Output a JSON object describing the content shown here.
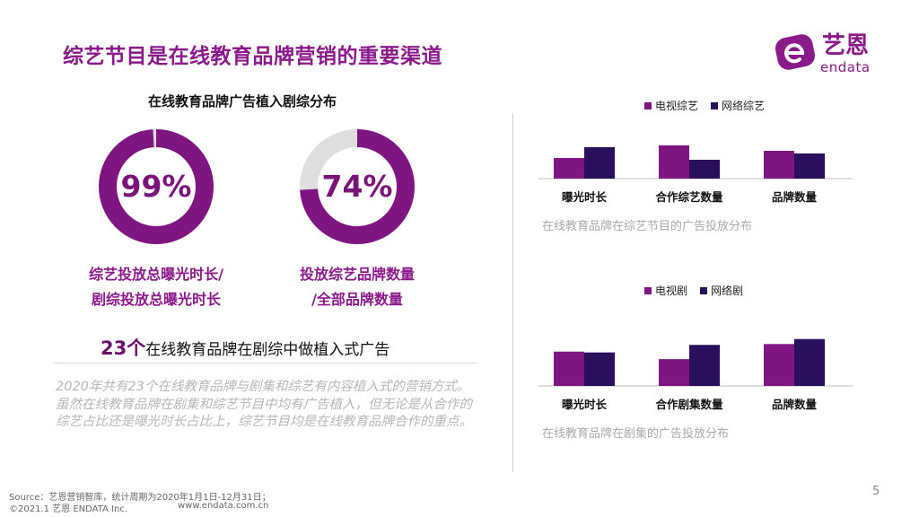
{
  "title": "综艺节目是在线教育品牌营销的重要渠道",
  "logo": {
    "cn": "艺恩",
    "en": "endata",
    "mark": "e-logo-icon"
  },
  "left": {
    "subtitle": "在线教育品牌广告植入剧综分布",
    "donuts": [
      {
        "value": 99,
        "label": "99%",
        "caption_line1": "综艺投放总曝光时长/",
        "caption_line2": "剧综投放总曝光时长"
      },
      {
        "value": 74,
        "label": "74%",
        "caption_line1": "投放综艺品牌数量",
        "caption_line2": "/全部品牌数量"
      }
    ],
    "headline_num": "23个",
    "headline_text": "在线教育品牌在剧综中做植入式广告",
    "paragraph": "2020年共有23个在线教育品牌与剧集和综艺有内容植入式的营销方式。虽然在线教育品牌在剧集和综艺节目中均有广告植入，但无论是从合作的综艺占比还是曝光时长占比上，综艺节目均是在线教育品牌合作的重点。"
  },
  "colors": {
    "primary": "#7e1581",
    "secondary": "#2a0f5c",
    "donut_track": "#dedede"
  },
  "chart_data": [
    {
      "type": "bar",
      "categories": [
        "曝光时长",
        "合作综艺数量",
        "品牌数量"
      ],
      "series": [
        {
          "name": "电视综艺",
          "values": [
            23,
            37,
            31
          ]
        },
        {
          "name": "网络综艺",
          "values": [
            35,
            21,
            28
          ]
        }
      ],
      "ylim": [
        0,
        40
      ],
      "legend": "top",
      "note": "在线教育品牌在综艺节目的广告投放分布"
    },
    {
      "type": "bar",
      "categories": [
        "曝光时长",
        "合作剧集数量",
        "品牌数量"
      ],
      "series": [
        {
          "name": "电视剧",
          "values": [
            41,
            32,
            50
          ]
        },
        {
          "name": "网络剧",
          "values": [
            40,
            49,
            56
          ]
        }
      ],
      "ylim": [
        0,
        60
      ],
      "legend": "top",
      "note": "在线教育品牌在剧集的广告投放分布"
    }
  ],
  "footer": {
    "source": "Source：艺恩营销智库，统计周期为2020年1月1日-12月31日；",
    "copyright": "©2021.1 艺恩 ENDATA Inc.",
    "url": "www.endata.com.cn",
    "page": "5"
  }
}
